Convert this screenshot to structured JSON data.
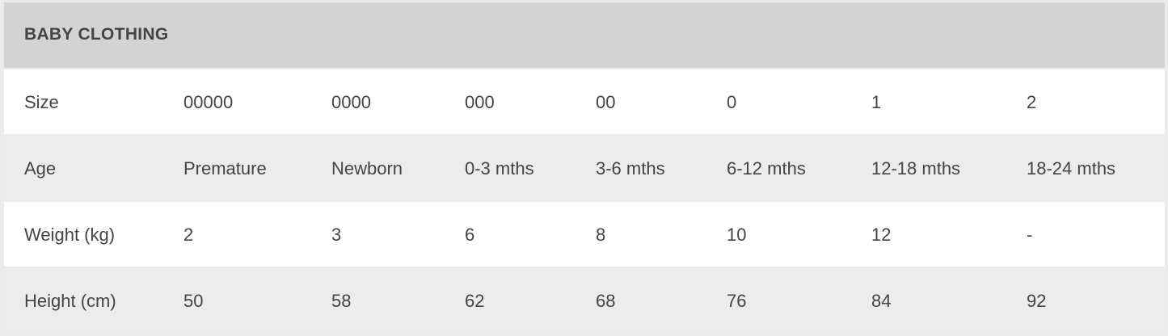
{
  "table": {
    "title": "BABY CLOTHING",
    "rows": [
      {
        "label": "Size",
        "values": [
          "00000",
          "0000",
          "000",
          "00",
          "0",
          "1",
          "2"
        ]
      },
      {
        "label": "Age",
        "values": [
          "Premature",
          "Newborn",
          "0-3 mths",
          "3-6 mths",
          "6-12 mths",
          "12-18 mths",
          "18-24 mths"
        ]
      },
      {
        "label": "Weight (kg)",
        "values": [
          "2",
          "3",
          "6",
          "8",
          "10",
          "12",
          "-"
        ]
      },
      {
        "label": "Height (cm)",
        "values": [
          "50",
          "58",
          "62",
          "68",
          "76",
          "84",
          "92"
        ]
      }
    ]
  }
}
